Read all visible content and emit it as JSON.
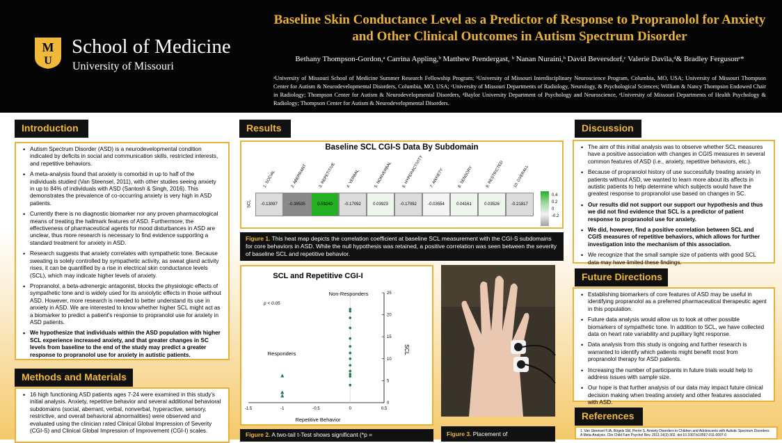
{
  "header": {
    "school": "School of Medicine",
    "university": "University of Missouri",
    "logo_letters": "MU",
    "title": "Baseline Skin Conductance Level as a Predictor of Response to Propranolol for Anxiety and Other Clinical Outcomes in Autism Spectrum Disorder",
    "authors": "Bethany Thompson-Gordon,ᵃ Carrina Appling,ᵇ Matthew Prendergast, ᵇ Nanan Nuraini,ᵇ David Beversdorf,ᶜ Valerie Davila,ᵈ& Bradley Fergusonᵉ*",
    "affiliations": "ᵃUniversity of Missouri School of Medicine Summer Research Fellowship Program; ᵇUniversity of Missouri Interdisciplinary Neuroscience Program, Columbia, MO, USA; University of Missouri Thompson Center for Autism & Neurodevelopmental Disorders, Columbia, MO, USA; ᶜUniversity of Missouri Departments of Radiology, Neurology, & Psychological Sciences; William & Nancy Thompson Endowed Chair in Radiology; Thompson Center for Autism & Neurodevelopmental Disorders, ᵈBaylor University Department of Psychology and Neuroscience, ᵉUniversity of Missouri Departments of Health Psychology & Radiology; Thompson Center for Autism & Neurodevelopmental Disorders."
  },
  "introduction": {
    "title": "Introduction",
    "items": [
      "Autism Spectrum Disorder (ASD) is a neurodevelopmental condition indicated by deficits in social and communication skills, restricted interests, and repetitive behaviors.",
      "A meta-analysis found that anxiety is comorbid in up to half of the individuals studied (Van Steensel, 2011), with other studies seeing anxiety in up to 84% of individuals with ASD (Santosh & Singh, 2016). This demonstrates the prevalence of co-occurring anxiety is very high in ASD patients.",
      "Currently there is no diagnostic biomarker nor any proven pharmacological means of treating the hallmark features of ASD. Furthermore, the effectiveness of pharmaceutical agents for mood disturbances in ASD are unclear, thus more research is necessary to find evidence supporting a standard treatment for anxiety in ASD.",
      "Research suggests that anxiety correlates with sympathetic tone. Because sweating is solely controlled by sympathetic activity, as sweat gland activity rises, it can be quantified by a rise in electrical skin conductance levels (SCL), which may indicate higher levels of anxiety.",
      "Propranolol, a beta-adrenergic antagonist, blocks the physiologic effects of sympathetic tone and is widely used for its anxiolytic effects in those without ASD. However, more research is needed to better understand its use in anxiety in ASD. We are interested to know whether higher SCL might act as a biomarker to predict a patient's response to propranolol use for anxiety in ASD patients.",
      "We hypothesize that individuals within the ASD population with higher SCL experience increased anxiety, and that greater changes in SC levels from baseline to the end of the study may predict a greater response to propranolol use for anxiety in autistic patients."
    ]
  },
  "methods": {
    "title": "Methods and Materials",
    "items": [
      "16 high functioning ASD patients ages 7-24 were examined in this study's initial analysis. Anxiety, repetitive behavior and several additional behavioral subdomains (social, aberrant, verbal, nonverbal, hyperactive, sensory, restrictive, and overall behavioral abnormalities) were observed and evaluated using the clinician rated Clinical Global Impression of Severity (CGI-S) and Clinical Global Impression of Improvement (CGI-I) scales."
    ]
  },
  "results": {
    "title": "Results",
    "heatmap_title": "Baseline SCL CGI-S Data By Subdomain",
    "row_label": "SCL",
    "legend_ticks": [
      "0.4",
      "0.2",
      "0",
      "-0.2"
    ],
    "fig1_label": "Figure 1.",
    "fig1_caption": " This heat map depicts the correlation coefficient at baseline SCL measurement with the CGI-S subdomains for core behaviors in ASD. While the null hypothesis was retained, a positive correlation was seen between the severity of baseline SCL and repetitive behavior.",
    "fig2_label": "Figure 2.",
    "fig2_caption": " A two-tail t-Test shows significant (*p =",
    "fig3_label": "Figure 3.",
    "fig3_caption": "  Placement of"
  },
  "chart_data": [
    {
      "type": "heatmap",
      "title": "Baseline SCL CGI-S Data By Subdomain",
      "rows": [
        "SCL"
      ],
      "categories": [
        "1. SOCIAL",
        "2. ABERRANT",
        "3. REPETITIVE",
        "4. VERBAL",
        "5. NONVERBAL",
        "6. HYPERACTIVITY",
        "7. ANXIETY",
        "8. SENSORY",
        "9. RESTRICTED",
        "10. OVERALL"
      ],
      "values": [
        -0.13097,
        -0.38535,
        0.5924,
        -0.17092,
        0.03923,
        -0.17092,
        -0.03554,
        0.04161,
        0.03526,
        -0.21817
      ],
      "labels": [
        "-0.13097",
        "-0.38535",
        "0.59240",
        "-0.17092",
        "0.03923",
        "-0.17092",
        "-0.03554",
        "0.04161",
        "0.03526",
        "-0.21817"
      ],
      "colorbar": {
        "min": -0.4,
        "max": 0.6
      }
    },
    {
      "type": "scatter",
      "title": "SCL and Repetitive CGI-I",
      "annotation": "p < 0.05",
      "xlabel": "Repetitive Behavior",
      "ylabel": "SCL",
      "x_ticks": [
        "-1.5",
        "-1",
        "-0.5",
        "0",
        "0.5"
      ],
      "y_ticks": [
        "0",
        "5",
        "10",
        "15",
        "20",
        "25"
      ],
      "xlim": [
        -1.5,
        0.5
      ],
      "ylim": [
        0,
        25
      ],
      "series": [
        {
          "name": "Responders",
          "x": [
            -1,
            -1,
            -1
          ],
          "y": [
            1.5,
            2.3,
            6.1
          ]
        },
        {
          "name": "Non-Responders",
          "x": [
            0,
            0,
            0,
            0,
            0,
            0,
            0,
            0,
            0,
            0,
            0,
            0,
            0
          ],
          "y": [
            4,
            6,
            6.5,
            7.2,
            8.5,
            10,
            11.3,
            12.8,
            14.6,
            17,
            19.3,
            20.8,
            21.3
          ]
        }
      ]
    }
  ],
  "discussion": {
    "title": "Discussion",
    "items": [
      {
        "text": "The aim of this initial analysis was to observe whether SCL measures have a positive association with changes in CGIS measures in several common features of ASD (i.e., anxiety, repetitive behaviors, etc.).",
        "bold": false
      },
      {
        "text": "Because of propranolol history of use successfully treating anxiety in patients without ASD, we wanted to learn more about its affects in autistic patients to help determine which subjects would have the greatest response to propranolol use based on changes in SC.",
        "bold": false
      },
      {
        "text": "Our results did not support our support our hypothesis and thus we did not find evidence that SCL is a predictor of patient response to propranolol use for anxiety.",
        "bold": true
      },
      {
        "text": "We did, however, find a positive correlation between SCL and CGIS measures of repetitive behaviors, which allows for further investigation into the mechanism of this association.",
        "bold": true
      },
      {
        "text": "We recognize that the small sample size of patients with good SCL data may have limited these findings.",
        "bold": false
      }
    ]
  },
  "future": {
    "title": "Future Directions",
    "items": [
      "Establishing biomarkers of core features of ASD may be useful in identifying propranolol as a preferred pharmaceutical therapeutic agent in this population.",
      "Future data analysis would allow us to look at other possible biomarkers of sympathetic tone. In addition to SCL, we have collected data on heart rate variability and pupillary light response.",
      "Data analysis from this study is ongoing and further research is warranted to identify which patients might benefit most from propranolol therapy for ASD patients.",
      "Increasing the number of participants in future trials would help to address issues with sample size.",
      "Our hope is that further analysis of our data may impact future clinical decision making when treating anxiety and other features associated with ASD."
    ]
  },
  "references": {
    "title": "References",
    "text": "1. Van Steensel FJA, Bögels SM, Perrin S. Anxiety Disorders in Children and Adolescents with Autistic Spectrum Disorders: A Meta-Analysis. Clin Child Fam Psychol Rev. 2011;14(3):302. doi:10.1007/s10567-011-0097-0"
  },
  "colors": {
    "gold": "#e8b23a",
    "black": "#111111"
  }
}
